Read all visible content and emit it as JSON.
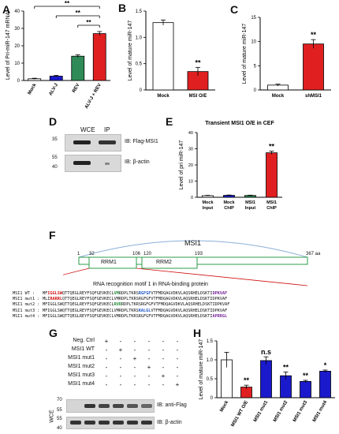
{
  "panels": {
    "A": "A",
    "B": "B",
    "C": "C",
    "D": "D",
    "E": "E",
    "F": "F",
    "G": "G",
    "H": "H"
  },
  "sig": {
    "two": "**",
    "one": "*",
    "ns": "n.s"
  },
  "colors": {
    "white": "#ffffff",
    "blue": "#1a1acc",
    "green": "#2e8b57",
    "red": "#e02020",
    "black": "#000000"
  },
  "chart_data": [
    {
      "panel": "A",
      "type": "bar",
      "categories": [
        "Mock",
        "ALV-J",
        "REV",
        "ALV-J + REV"
      ],
      "values": [
        1,
        2.5,
        14,
        27
      ],
      "errors": [
        0.3,
        0.4,
        0.8,
        1.2
      ],
      "colors": [
        "#ffffff",
        "#1a1acc",
        "#2e8b57",
        "#e02020"
      ],
      "ylabel": "Level of Pri-miR-147 mRNA",
      "ylim": [
        0,
        40
      ],
      "yticks": [
        0,
        10,
        20,
        30,
        40
      ],
      "significance": [
        {
          "from": 0,
          "to": 3,
          "label": "**"
        },
        {
          "from": 1,
          "to": 3,
          "label": "**"
        },
        {
          "from": 2,
          "to": 3,
          "label": "**"
        }
      ]
    },
    {
      "panel": "B",
      "type": "bar",
      "categories": [
        "Mock",
        "MSI O/E"
      ],
      "values": [
        1.28,
        0.35
      ],
      "errors": [
        0.05,
        0.08
      ],
      "colors": [
        "#ffffff",
        "#e02020"
      ],
      "ylabel": "Level of mature miR-147",
      "ylim": [
        0,
        1.5
      ],
      "yticks": [
        0,
        0.5,
        1.0,
        1.5
      ],
      "significance": [
        {
          "bar": 1,
          "label": "**"
        }
      ]
    },
    {
      "panel": "C",
      "type": "bar",
      "categories": [
        "Mock",
        "shMSI1"
      ],
      "values": [
        1,
        9.5
      ],
      "errors": [
        0.2,
        0.9
      ],
      "colors": [
        "#ffffff",
        "#e02020"
      ],
      "ylabel": "Level of mature miR-147",
      "ylim": [
        0,
        15
      ],
      "yticks": [
        0,
        5,
        10,
        15
      ],
      "significance": [
        {
          "bar": 1,
          "label": "**"
        }
      ]
    },
    {
      "panel": "E",
      "type": "bar",
      "title": "Transient MSI1 O/E in CEF",
      "categories": [
        "Mock Input",
        "Mock ChIP",
        "MSI1 Input",
        "MSI1 ChIP"
      ],
      "values": [
        1,
        1.2,
        1.1,
        27.5
      ],
      "errors": [
        0.2,
        0.2,
        0.2,
        1.0
      ],
      "colors": [
        "#ffffff",
        "#1a1acc",
        "#2e8b57",
        "#e02020"
      ],
      "ylabel": "Level of pri miR-147",
      "ylim": [
        0,
        40
      ],
      "yticks": [
        0,
        10,
        20,
        30,
        40
      ],
      "significance": [
        {
          "bar": 3,
          "label": "**"
        }
      ]
    },
    {
      "panel": "H",
      "type": "bar",
      "categories": [
        "Mock",
        "MSI1 WT O/E",
        "MSI1 mut1",
        "MSI1 mut2",
        "MSI1 mut3",
        "MSI1 mut4"
      ],
      "values": [
        1.0,
        0.28,
        0.98,
        0.58,
        0.43,
        0.7
      ],
      "errors": [
        0.2,
        0.05,
        0.1,
        0.1,
        0.03,
        0.03
      ],
      "colors": [
        "#ffffff",
        "#e02020",
        "#1a1acc",
        "#1a1acc",
        "#1a1acc",
        "#1a1acc"
      ],
      "ylabel": "Level of mature miR-147",
      "ylim": [
        0,
        1.5
      ],
      "yticks": [
        0,
        0.5,
        1.0,
        1.5
      ],
      "significance": [
        {
          "bar": 1,
          "label": "**"
        },
        {
          "bar": 2,
          "label": "n.s"
        },
        {
          "bar": 3,
          "label": "**"
        },
        {
          "bar": 4,
          "label": "**"
        },
        {
          "bar": 5,
          "label": "*"
        }
      ]
    }
  ],
  "blotD": {
    "lanes": [
      "WCE",
      "IP"
    ],
    "markers": [
      "35",
      "55",
      "40"
    ],
    "labels": [
      "IB: Flag-MSI1",
      "IB: β-actin"
    ]
  },
  "diagramF": {
    "title": "MSI1",
    "positions": [
      "1",
      "32",
      "106",
      "120",
      "193",
      "367 aa"
    ],
    "domains": [
      "RRM1",
      "RRM2"
    ],
    "caption": "RNA recognition motif 1 in RNA-binding protein",
    "rows": [
      {
        "name": "MSI1 WT :",
        "seg": [
          [
            "",
            "MF"
          ],
          [
            "red",
            "IGGLSW"
          ],
          [
            "",
            "QTTQEGLREYFSQFGEVKECL"
          ],
          [
            "grn",
            "VM"
          ],
          [
            "",
            "RDPLTKRS"
          ],
          [
            "blu",
            "RGFGF"
          ],
          [
            "",
            "VTFMDQAGVDKVLAQSRHELDSKTI"
          ],
          [
            "pur",
            "DPKVAF"
          ]
        ]
      },
      {
        "name": "MSI1 mut1 :",
        "seg": [
          [
            "",
            "MLI"
          ],
          [
            "red",
            "RARRL"
          ],
          [
            "",
            "QTTQEGLREYFSQFGEVKECLVMRDPLTKRSRGFGFVTFMDQAGVDKVLAQSRHELDSKTIDPKVAF"
          ]
        ]
      },
      {
        "name": "MSI1 mut2 :",
        "seg": [
          [
            "",
            "MFIGGLSWQTTQEGLREYFSQFGEVKECL"
          ],
          [
            "grn",
            "RVR"
          ],
          [
            "",
            "RDPLTKRSRGFGFVTFMDQAGVDKVLAQSRHELDSKTIDPKVAF"
          ]
        ]
      },
      {
        "name": "MSI1 mut3 :",
        "seg": [
          [
            "",
            "MFIGGLSWQTTQEGLREYFSQFGEVKECLVMRDPLTKRS"
          ],
          [
            "blu",
            "KALGL"
          ],
          [
            "",
            "VTFMDQAGVDKVLAQSRHELDSKTIDPKVAF"
          ]
        ]
      },
      {
        "name": "MSI1 mut4 :",
        "seg": [
          [
            "",
            "MFIGGLSWQTTQEGLREYFSQFGEVKECLVMRDPLTKRSRGFGFVTFMDQAGVDKVLAQSRHELDSKTI"
          ],
          [
            "pur",
            "APRRGL"
          ]
        ]
      }
    ]
  },
  "blotG": {
    "conditions": [
      "Neg. Ctrl",
      "MSI1 WT",
      "MSI1 mut1",
      "MSI1 mut2",
      "MSI1 mut3",
      "MSI1 mut4"
    ],
    "plus": "+",
    "minus": "-",
    "markers": [
      "70",
      "55",
      "55",
      "40"
    ],
    "side": "WCE",
    "labels": [
      "IB: anti-Flag",
      "IB: β-actin"
    ]
  }
}
